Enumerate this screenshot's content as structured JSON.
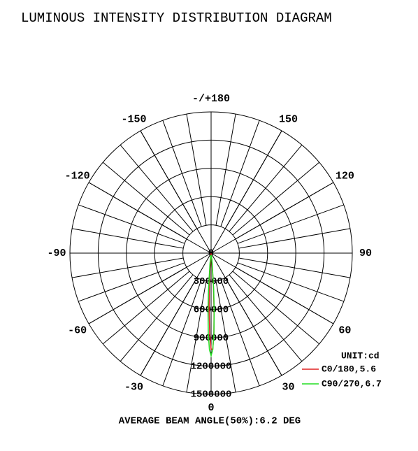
{
  "chart_data": {
    "type": "polar",
    "title": "LUMINOUS INTENSITY DISTRIBUTION DIAGRAM",
    "note": "AVERAGE BEAM ANGLE(50%):6.2 DEG",
    "unit_label": "UNIT:cd",
    "rlim": [
      0,
      1500000
    ],
    "rticks": [
      0,
      300000,
      600000,
      900000,
      1200000,
      1500000
    ],
    "angle_ticks": [
      0,
      30,
      60,
      90,
      120,
      150,
      {
        "value": 180,
        "label": "-/+180"
      },
      -150,
      -120,
      -90,
      -60,
      -30
    ],
    "grid": true,
    "series": [
      {
        "name": "C0/180,5.6",
        "color": "#e02020",
        "angles": [
          -8,
          -6,
          -4,
          -3,
          -2,
          -1,
          0,
          1,
          2,
          3,
          4,
          6,
          8
        ],
        "values": [
          1800,
          25000,
          174000,
          354000,
          602000,
          855000,
          1020000,
          1020000,
          855000,
          602000,
          354000,
          72000,
          7300
        ]
      },
      {
        "name": "C90/270,6.7",
        "color": "#22dd22",
        "angles": [
          -8,
          -6,
          -4,
          -3,
          -2,
          -1,
          0,
          1,
          2,
          3,
          4,
          6,
          8
        ],
        "values": [
          21000,
          118000,
          406000,
          625000,
          851000,
          1025000,
          1090000,
          1025000,
          851000,
          625000,
          406000,
          118000,
          21000
        ]
      }
    ]
  }
}
